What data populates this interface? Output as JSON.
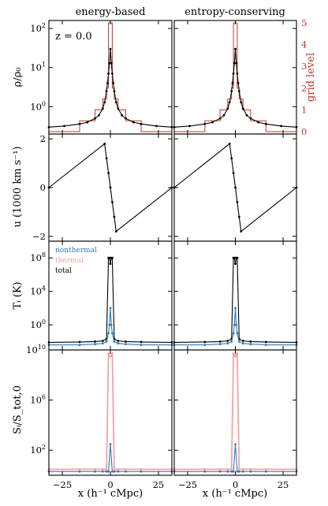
{
  "figure": {
    "column_titles": [
      "energy-based",
      "entropy-conserving"
    ],
    "annotation": "z = 0.0",
    "xlabel": "x (h⁻¹ cMpc)",
    "ylabels": [
      "ρ/ρ₀",
      "u (1000 km s⁻¹)",
      "Tᵢ (K)",
      "Sᵢ/S_tot,0"
    ],
    "right_ylabel": "grid level",
    "legend": [
      "nonthermal",
      "thermal",
      "total"
    ]
  },
  "colors": {
    "total": "#000000",
    "thermal": "#fdb863",
    "entropy_thermal": "#f4a3a3",
    "nonthermal": "#2b7bba",
    "grid_level": "#c0392b"
  },
  "chart_data": [
    {
      "type": "line",
      "panel": "density",
      "x_range": [
        -32,
        32
      ],
      "y_scale": "log",
      "ylim": [
        0.2,
        160
      ],
      "y_ticks": [
        "10^2",
        "10^1",
        "10^0"
      ],
      "x": [
        -32,
        -24,
        -16,
        -12,
        -8,
        -6,
        -4,
        -3,
        -2,
        -1.5,
        -1,
        -0.5,
        0,
        0.5,
        1,
        1.5,
        2,
        3,
        4,
        6,
        8,
        12,
        16,
        24,
        32
      ],
      "series": [
        {
          "name": "total",
          "values": [
            0.3,
            0.32,
            0.36,
            0.4,
            0.5,
            0.6,
            0.9,
            1.3,
            2.5,
            4,
            7,
            13,
            30,
            13,
            7,
            4,
            2.5,
            1.3,
            0.9,
            0.6,
            0.5,
            0.4,
            0.36,
            0.32,
            0.3
          ]
        }
      ],
      "grid_level": {
        "ylim": [
          0,
          5
        ],
        "y_ticks": [
          0,
          1,
          2,
          3,
          4,
          5
        ],
        "x_edges": [
          -32,
          -16,
          -8,
          -4,
          -2,
          -1,
          1,
          2,
          4,
          8,
          16,
          32
        ],
        "levels": [
          0,
          0.5,
          1,
          1.5,
          2,
          5,
          2,
          1.5,
          1,
          0.5,
          0
        ]
      }
    },
    {
      "type": "line",
      "panel": "velocity",
      "x_range": [
        -32,
        32
      ],
      "ylim": [
        -2.2,
        2.2
      ],
      "y_ticks": [
        2,
        0,
        -2
      ],
      "series": [
        {
          "name": "total",
          "x": [
            -32,
            -3,
            -2,
            -1,
            0,
            1,
            2,
            3,
            32
          ],
          "values": [
            0,
            1.8,
            1.2,
            0.6,
            0,
            -0.6,
            -1.2,
            -1.8,
            0
          ]
        }
      ]
    },
    {
      "type": "line",
      "panel": "temperature",
      "x_range": [
        -32,
        32
      ],
      "y_scale": "log",
      "ylim": [
        0.001,
        10000000000.0
      ],
      "y_ticks": [
        "10^8",
        "10^4",
        "10^0"
      ],
      "x": [
        -32,
        -16,
        -8,
        -4,
        -2,
        -1,
        -0.5,
        0,
        0.5,
        1,
        2,
        4,
        8,
        16,
        32
      ],
      "series": [
        {
          "name": "total",
          "values": [
            0.008,
            0.009,
            0.01,
            0.012,
            0.02,
            100000000.0,
            100000000.0,
            20000000.0,
            100000000.0,
            100000000.0,
            0.02,
            0.012,
            0.01,
            0.009,
            0.008
          ]
        },
        {
          "name": "nonthermal",
          "values": [
            0.004,
            0.004,
            0.005,
            0.006,
            0.01,
            0.1,
            1,
            100,
            1,
            0.1,
            0.01,
            0.006,
            0.005,
            0.004,
            0.004
          ]
        }
      ]
    },
    {
      "type": "line",
      "panel": "entropy",
      "x_range": [
        -32,
        32
      ],
      "y_scale": "log",
      "ylim": [
        1,
        10000000000.0
      ],
      "y_ticks": [
        "10^10",
        "10^6",
        "10^2"
      ],
      "x": [
        -32,
        -16,
        -8,
        -4,
        -2,
        -1,
        0,
        1,
        2,
        4,
        8,
        16,
        32
      ],
      "series": [
        {
          "name": "thermal",
          "values": [
            3,
            3,
            3,
            3,
            3,
            5000000000.0,
            3000000000.0,
            5000000000.0,
            3,
            3,
            3,
            3,
            3
          ]
        },
        {
          "name": "nonthermal",
          "values": [
            2,
            2,
            2,
            2,
            2,
            2,
            300,
            2,
            2,
            2,
            2,
            2,
            2
          ]
        }
      ]
    }
  ],
  "x_ticks": [
    -25,
    0,
    25
  ]
}
